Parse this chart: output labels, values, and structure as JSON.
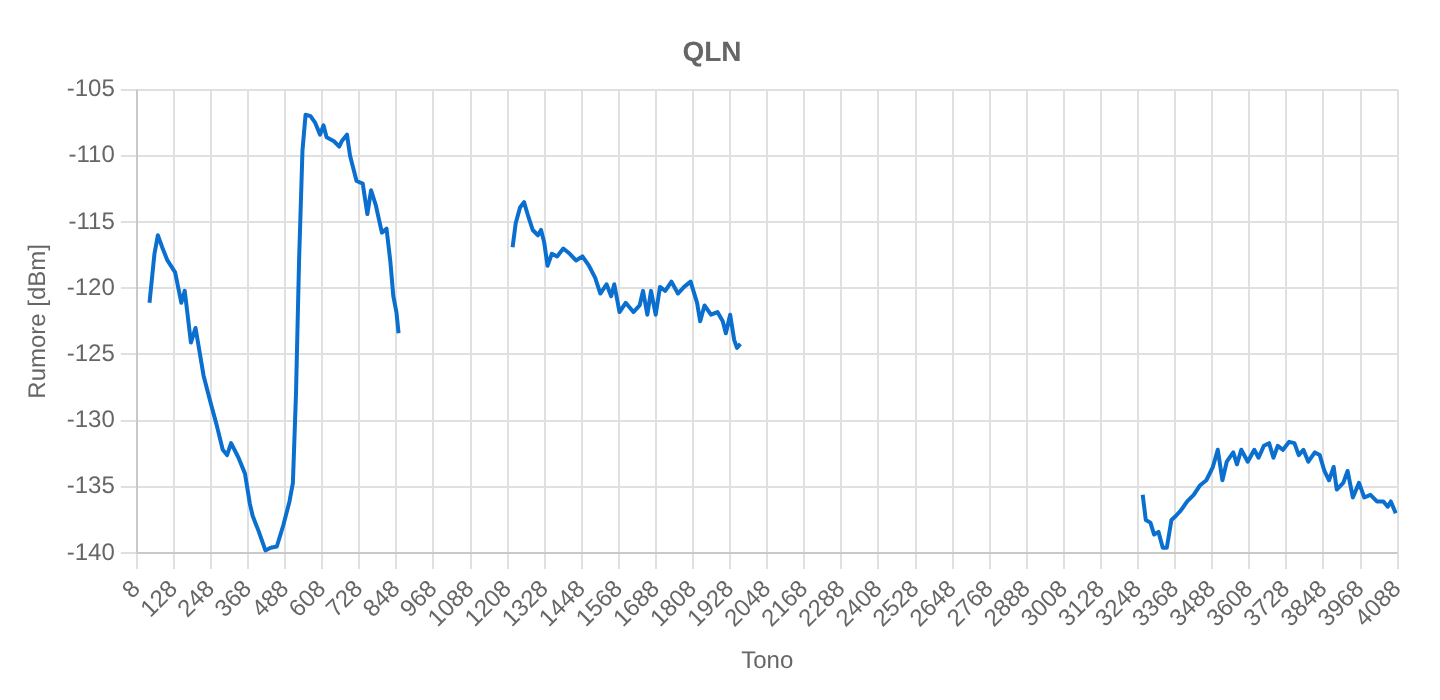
{
  "chart_data": {
    "type": "line",
    "title": "QLN",
    "xlabel": "Tono",
    "ylabel": "Rumore [dBm]",
    "xlim": [
      8,
      4088
    ],
    "xticks": [
      8,
      128,
      248,
      368,
      488,
      608,
      728,
      848,
      968,
      1088,
      1208,
      1328,
      1448,
      1568,
      1688,
      1808,
      1928,
      2048,
      2168,
      2288,
      2408,
      2528,
      2648,
      2768,
      2888,
      3008,
      3128,
      3248,
      3368,
      3488,
      3608,
      3728,
      3848,
      3968,
      4088
    ],
    "ylim": [
      -140,
      -105
    ],
    "yticks": [
      -140,
      -135,
      -130,
      -125,
      -120,
      -115,
      -110,
      -105
    ],
    "grid": true,
    "legend": false,
    "marker": "none",
    "line_style": "solid",
    "series": [
      {
        "color": "#0a6fcf",
        "x": [
          49,
          65,
          76,
          90,
          107,
          132,
          152,
          163,
          183,
          198,
          224,
          245,
          266,
          286,
          300,
          313,
          337,
          358,
          374,
          383,
          403,
          424,
          441,
          461,
          482,
          502,
          513,
          523,
          533,
          544,
          554,
          570,
          585,
          601,
          612,
          622,
          646,
          663,
          671,
          688,
          698,
          708,
          719,
          739,
          754,
          766,
          781,
          801,
          816,
          828,
          838,
          848,
          855,
          1040,
          1224,
          1234,
          1248,
          1261,
          1275,
          1289,
          1306,
          1316,
          1326,
          1337,
          1351,
          1368,
          1388,
          1409,
          1429,
          1450,
          1471,
          1491,
          1508,
          1528,
          1543,
          1553,
          1570,
          1590,
          1615,
          1635,
          1646,
          1660,
          1672,
          1687,
          1701,
          1718,
          1738,
          1759,
          1779,
          1800,
          1821,
          1831,
          1845,
          1866,
          1887,
          1904,
          1914,
          1928,
          1941,
          1950,
          1961,
          2600,
          3263,
          3273,
          3288,
          3300,
          3314,
          3328,
          3341,
          3356,
          3370,
          3386,
          3407,
          3428,
          3448,
          3469,
          3490,
          3506,
          3521,
          3535,
          3556,
          3568,
          3582,
          3603,
          3624,
          3638,
          3655,
          3672,
          3686,
          3700,
          3717,
          3737,
          3754,
          3768,
          3783,
          3799,
          3820,
          3836,
          3851,
          3866,
          3881,
          3891,
          3912,
          3926,
          3943,
          3963,
          3980,
          4000,
          4021,
          4042,
          4056,
          4066,
          4082
        ],
        "values": [
          -121.1,
          -117.4,
          -116.0,
          -116.9,
          -117.9,
          -118.8,
          -121.1,
          -120.2,
          -124.1,
          -123.0,
          -126.6,
          -128.5,
          -130.3,
          -132.2,
          -132.6,
          -131.7,
          -132.8,
          -134.0,
          -136.3,
          -137.2,
          -138.4,
          -139.8,
          -139.6,
          -139.5,
          -137.9,
          -136.1,
          -134.7,
          -128,
          -117.9,
          -109.6,
          -106.9,
          -107.0,
          -107.5,
          -108.4,
          -107.7,
          -108.6,
          -108.9,
          -109.3,
          -108.9,
          -108.4,
          -110.0,
          -110.9,
          -111.9,
          -112.1,
          -114.4,
          -112.6,
          -113.7,
          -115.8,
          -115.5,
          -117.9,
          -120.6,
          -121.8,
          -123.4,
          null,
          -116.9,
          -115.1,
          -113.9,
          -113.5,
          -114.6,
          -115.6,
          -116.0,
          -115.6,
          -116.5,
          -118.3,
          -117.4,
          -117.6,
          -117.0,
          -117.4,
          -117.9,
          -117.6,
          -118.3,
          -119.2,
          -120.4,
          -119.7,
          -120.6,
          -119.7,
          -121.8,
          -121.1,
          -121.8,
          -121.3,
          -120.2,
          -122.0,
          -120.2,
          -122.0,
          -119.9,
          -120.2,
          -119.5,
          -120.4,
          -119.9,
          -119.5,
          -121.1,
          -122.5,
          -121.3,
          -122.0,
          -121.8,
          -122.5,
          -123.4,
          -122.0,
          -123.9,
          -124.5,
          -124.2,
          null,
          -135.6,
          -137.5,
          -137.7,
          -138.6,
          -138.4,
          -139.6,
          -139.6,
          -137.5,
          -137.2,
          -136.8,
          -136.1,
          -135.6,
          -134.9,
          -134.5,
          -133.5,
          -132.2,
          -134.5,
          -133.1,
          -132.4,
          -133.3,
          -132.2,
          -133.1,
          -132.2,
          -132.8,
          -131.9,
          -131.7,
          -132.8,
          -131.9,
          -132.2,
          -131.6,
          -131.7,
          -132.6,
          -132.2,
          -133.1,
          -132.4,
          -132.6,
          -133.8,
          -134.5,
          -133.5,
          -135.2,
          -134.7,
          -133.8,
          -135.8,
          -134.7,
          -135.8,
          -135.6,
          -136.1,
          -136.1,
          -136.5,
          -136.1,
          -137.0
        ]
      }
    ]
  }
}
